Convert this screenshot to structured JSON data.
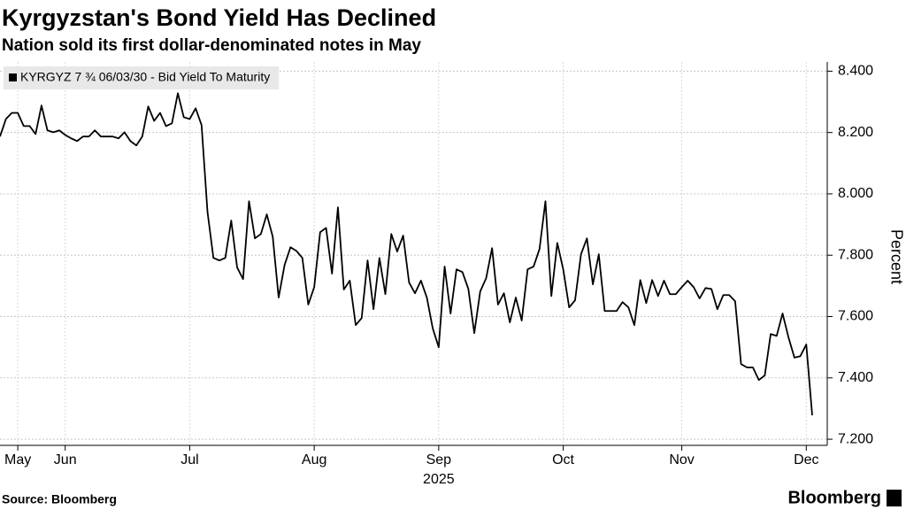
{
  "chart_data": {
    "type": "line",
    "title": "Kyrgyzstan's Bond Yield Has Declined",
    "subtitle": "Nation sold its first dollar-denominated notes in May",
    "y_label": "Percent",
    "x_sublabel": "2025",
    "source": "Source: Bloomberg",
    "brand": "Bloomberg",
    "categories": [
      null,
      null,
      null,
      "May",
      null,
      null,
      null,
      null,
      null,
      null,
      null,
      "Jun",
      null,
      null,
      null,
      null,
      null,
      null,
      null,
      null,
      null,
      null,
      null,
      null,
      null,
      null,
      null,
      null,
      null,
      null,
      null,
      null,
      "Jul",
      null,
      null,
      null,
      null,
      null,
      null,
      null,
      null,
      null,
      null,
      null,
      null,
      null,
      null,
      null,
      null,
      null,
      null,
      null,
      null,
      "Aug",
      null,
      null,
      null,
      null,
      null,
      null,
      null,
      null,
      null,
      null,
      null,
      null,
      null,
      null,
      null,
      null,
      null,
      null,
      null,
      null,
      "Sep",
      null,
      null,
      null,
      null,
      null,
      null,
      null,
      null,
      null,
      null,
      null,
      null,
      null,
      null,
      null,
      null,
      null,
      null,
      null,
      null,
      "Oct",
      null,
      null,
      null,
      null,
      null,
      null,
      null,
      null,
      null,
      null,
      null,
      null,
      null,
      null,
      null,
      null,
      null,
      null,
      null,
      "Nov",
      null,
      null,
      null,
      null,
      null,
      null,
      null,
      null,
      null,
      null,
      null,
      null,
      null,
      null,
      null,
      null,
      null,
      null,
      null,
      null,
      "Dec",
      null
    ],
    "series": [
      {
        "name": "KYRGYZ 7 ¾ 06/03/30 - Bid Yield To Maturity",
        "color": "#000000",
        "values": [
          8.187,
          8.244,
          8.264,
          8.264,
          8.221,
          8.221,
          8.195,
          8.288,
          8.207,
          8.201,
          8.207,
          8.192,
          8.181,
          8.172,
          8.187,
          8.187,
          8.207,
          8.187,
          8.187,
          8.187,
          8.181,
          8.201,
          8.172,
          8.158,
          8.187,
          8.285,
          8.238,
          8.264,
          8.221,
          8.23,
          8.328,
          8.25,
          8.244,
          8.279,
          8.224,
          7.941,
          7.791,
          7.783,
          7.791,
          7.913,
          7.76,
          7.722,
          7.976,
          7.855,
          7.869,
          7.933,
          7.861,
          7.662,
          7.768,
          7.826,
          7.814,
          7.791,
          7.639,
          7.696,
          7.875,
          7.889,
          7.74,
          7.956,
          7.688,
          7.717,
          7.572,
          7.595,
          7.783,
          7.624,
          7.791,
          7.673,
          7.869,
          7.812,
          7.864,
          7.711,
          7.676,
          7.717,
          7.662,
          7.561,
          7.5,
          7.763,
          7.61,
          7.754,
          7.745,
          7.69,
          7.546,
          7.682,
          7.725,
          7.823,
          7.639,
          7.676,
          7.581,
          7.662,
          7.587,
          7.754,
          7.763,
          7.82,
          7.976,
          7.667,
          7.84,
          7.754,
          7.63,
          7.653,
          7.803,
          7.855,
          7.705,
          7.803,
          7.618,
          7.618,
          7.618,
          7.647,
          7.63,
          7.572,
          7.719,
          7.644,
          7.719,
          7.667,
          7.717,
          7.673,
          7.673,
          7.696,
          7.717,
          7.696,
          7.659,
          7.693,
          7.69,
          7.624,
          7.67,
          7.67,
          7.65,
          7.445,
          7.434,
          7.434,
          7.393,
          7.408,
          7.543,
          7.537,
          7.61,
          7.532,
          7.466,
          7.471,
          7.509,
          7.278
        ]
      }
    ],
    "ylim": [
      7.18,
      8.43
    ],
    "yticks": [
      {
        "value": 7.2,
        "label": "7.200"
      },
      {
        "value": 7.4,
        "label": "7.400"
      },
      {
        "value": 7.6,
        "label": "7.600"
      },
      {
        "value": 7.8,
        "label": "7.800"
      },
      {
        "value": 8.0,
        "label": "8.000"
      },
      {
        "value": 8.2,
        "label": "8.200"
      },
      {
        "value": 8.4,
        "label": "8.400"
      }
    ],
    "grid": true,
    "legend": "top-left"
  }
}
